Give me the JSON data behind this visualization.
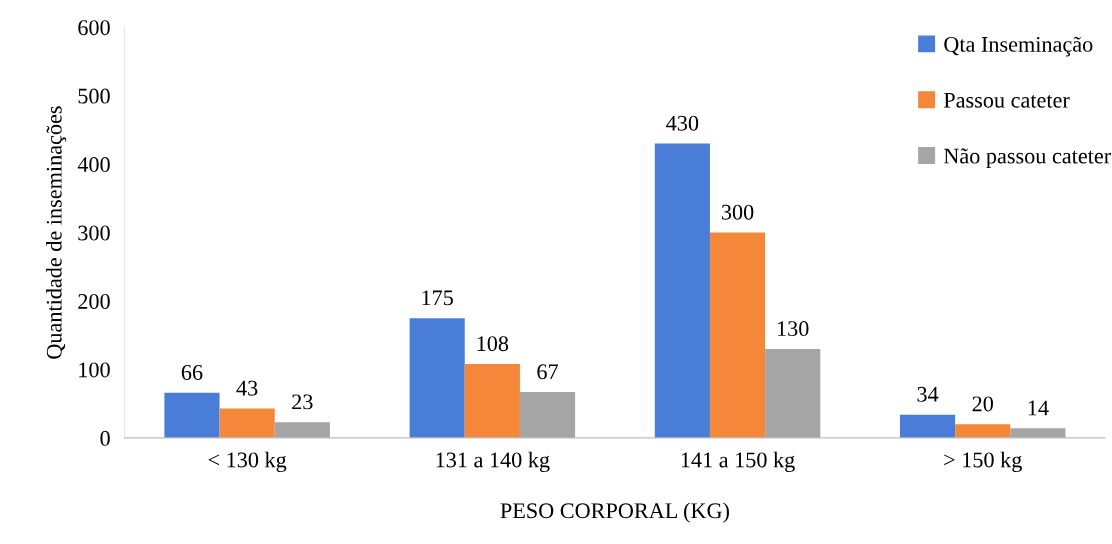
{
  "chart_data": {
    "type": "bar",
    "categories": [
      "< 130 kg",
      "131 a 140 kg",
      "141 a 150 kg",
      "> 150 kg"
    ],
    "xlabel": "PESO CORPORAL (KG)",
    "ylabel": "Quantidade de inseminações",
    "series": [
      {
        "name": "Qta Inseminação",
        "color": "#4a7dd8",
        "values": [
          66,
          175,
          430,
          34
        ]
      },
      {
        "name": "Passou cateter",
        "color": "#f5873a",
        "values": [
          43,
          108,
          300,
          20
        ]
      },
      {
        "name": "Não passou cateter",
        "color": "#a5a5a5",
        "values": [
          23,
          67,
          130,
          14
        ]
      }
    ],
    "ylim": [
      0,
      600
    ],
    "yticks": [
      0,
      100,
      200,
      300,
      400,
      500,
      600
    ],
    "grid": false,
    "legend": "top right",
    "data_labels": true
  }
}
